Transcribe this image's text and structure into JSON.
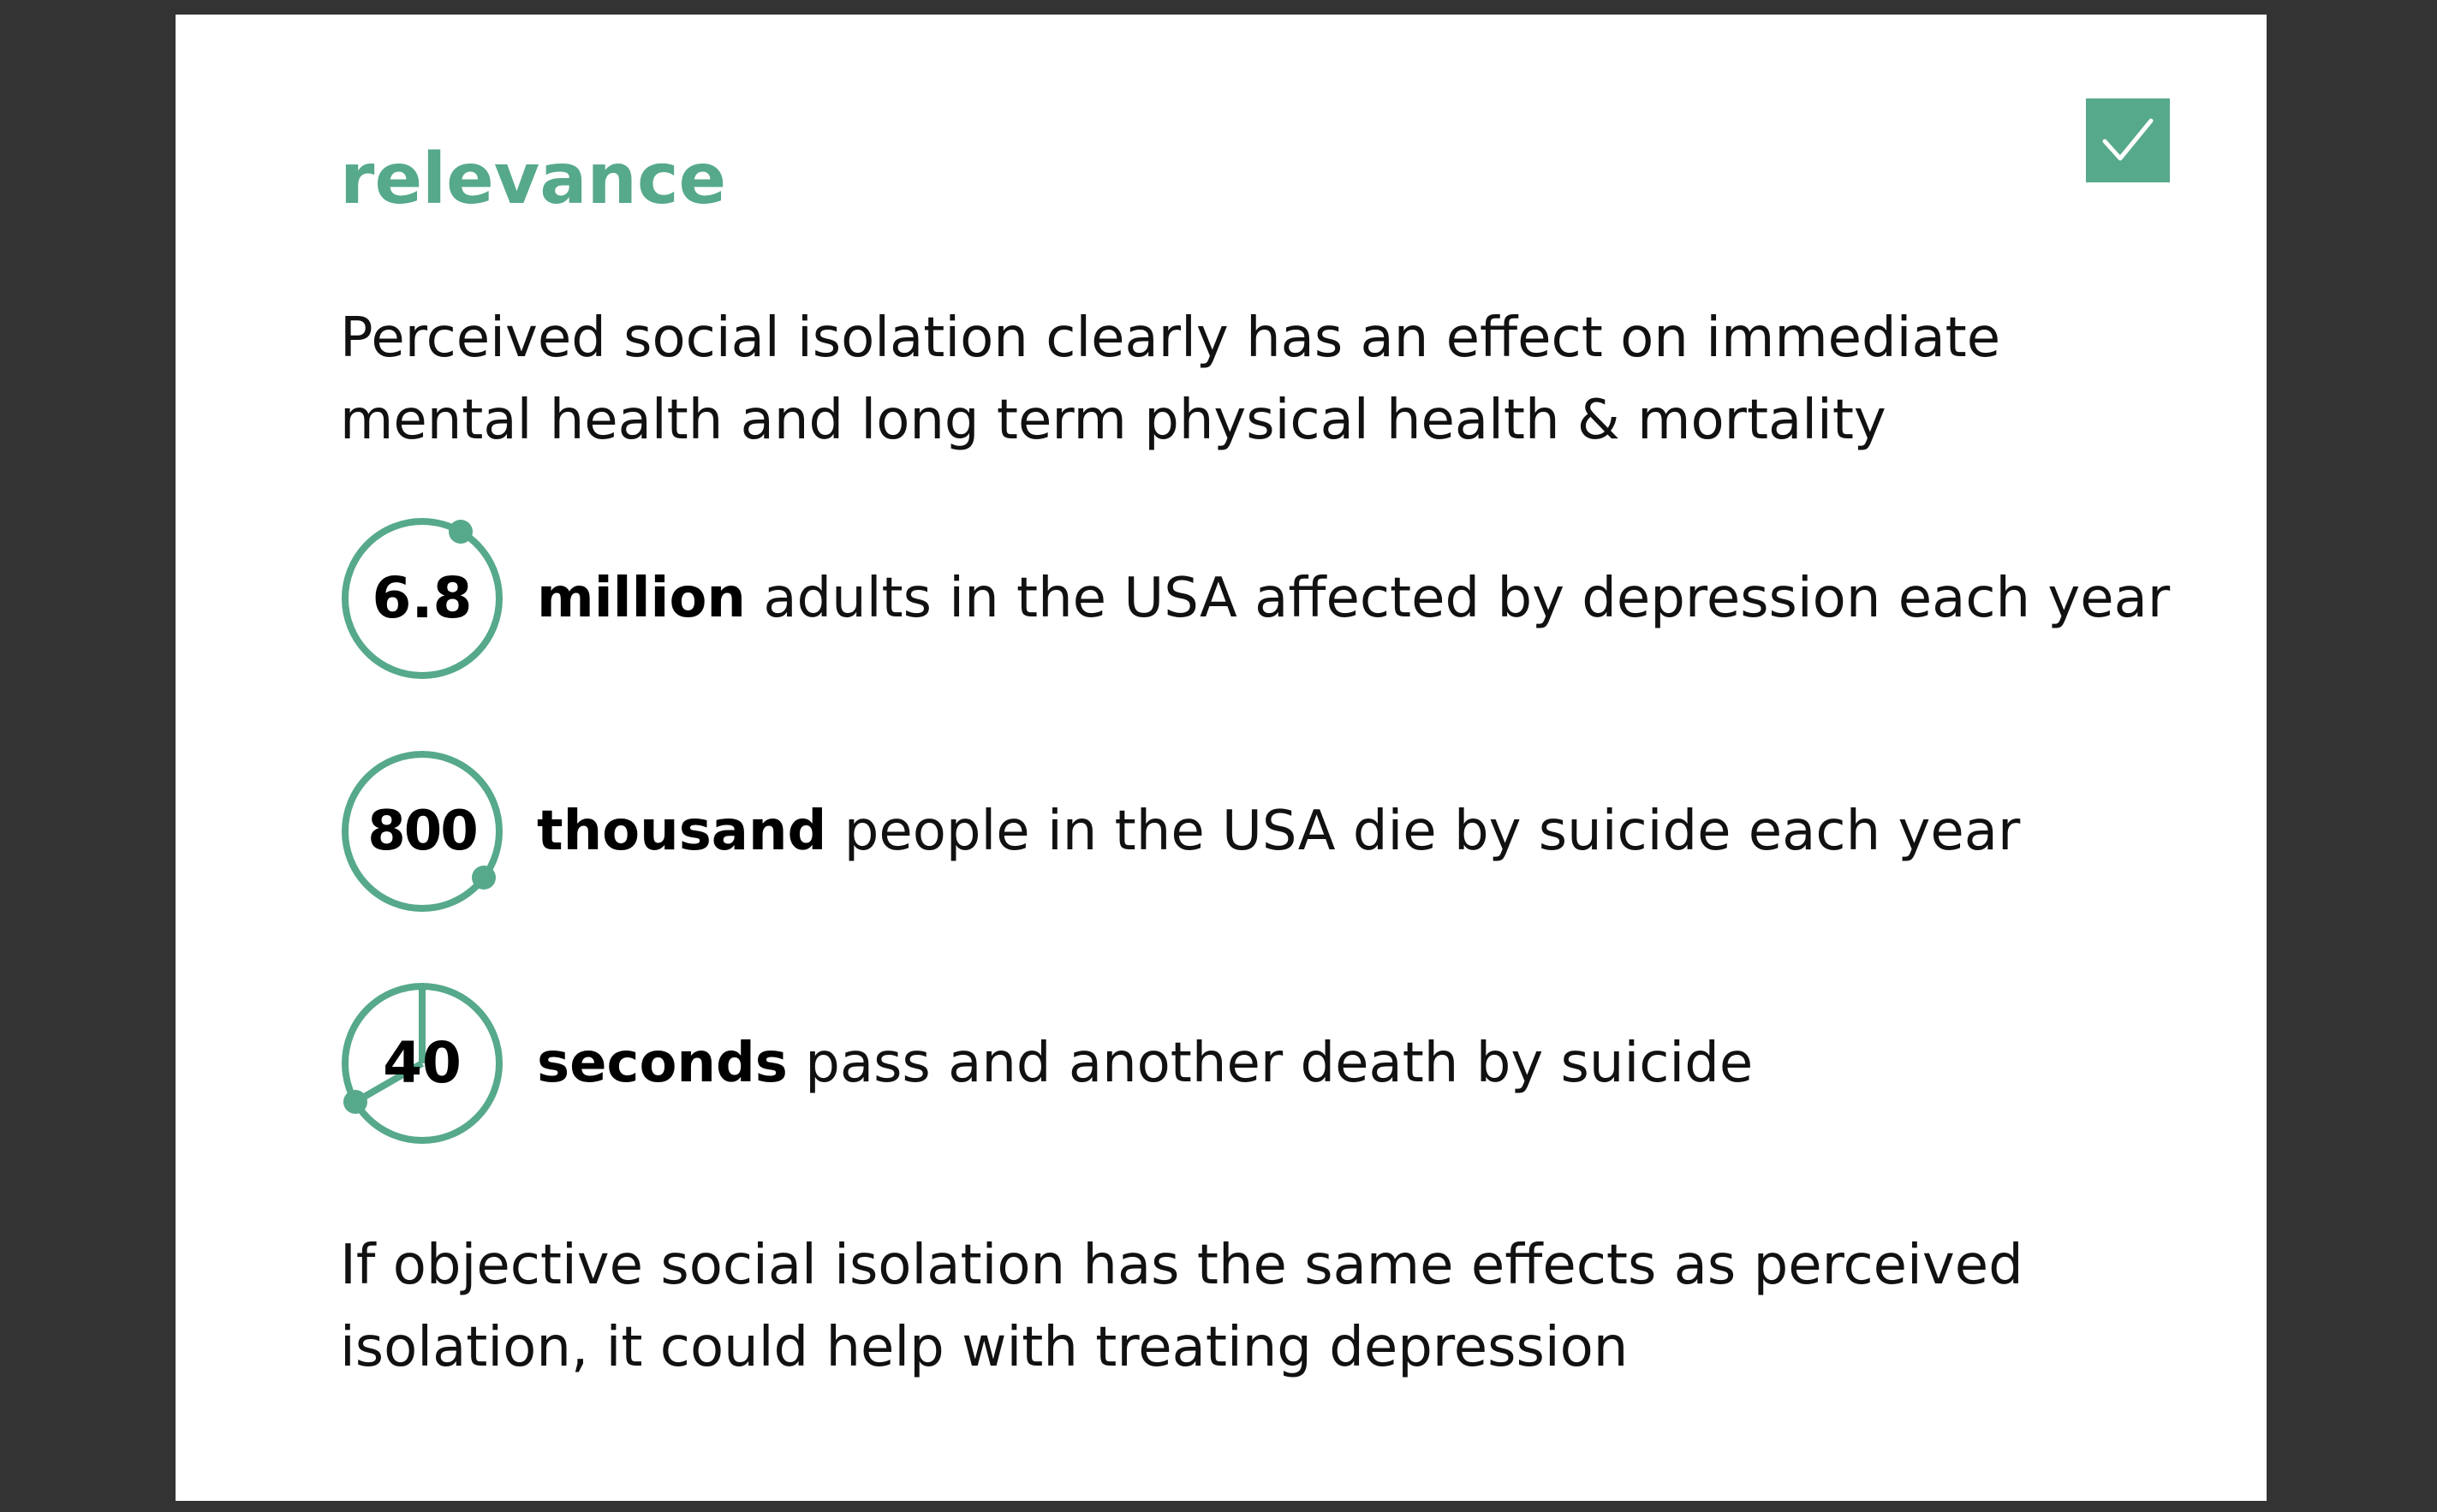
{
  "slide": {
    "title": "relevance",
    "intro": "Perceived social isolation clearly has an effect on immediate mental health and long term physical health & mortality",
    "outro": "If objective social isolation has the same effects as perceived isolation, it could help with treating depression",
    "check_icon": "checkmark-icon",
    "accent_color": "#56a98a",
    "stats": [
      {
        "number": "6.8",
        "unit": "million",
        "text": " adults in the USA affected by depression each year",
        "icon": "progress-ring-icon"
      },
      {
        "number": "800",
        "unit": "thousand",
        "text": " people in the USA die by suicide each year",
        "icon": "progress-ring-icon"
      },
      {
        "number": "40",
        "unit": "seconds",
        "text": " pass and another death by suicide",
        "icon": "clock-icon"
      }
    ]
  }
}
